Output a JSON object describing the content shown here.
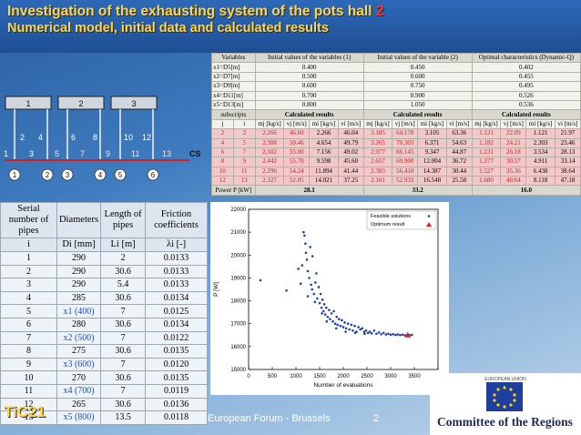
{
  "slide": {
    "title_text": "Investigation of the exhausting system of the pots hall ",
    "title_num": "2",
    "subtitle": "Numerical model, initial data and calculated results",
    "footer_center": "European Forum - Brussels",
    "footer_page": "2",
    "logo_left": "TiC21",
    "logo_right_top": "EUROPEAN UNION",
    "logo_right": "Committee of the Regions"
  },
  "schematic": {
    "sections": [
      "1",
      "2",
      "3"
    ],
    "branch_top": [
      "2",
      "4",
      "6",
      "8",
      "10",
      "12"
    ],
    "pipes_main": [
      "1",
      "3",
      "5",
      "7",
      "9",
      "11",
      "13"
    ],
    "nodes": [
      "1",
      "2",
      "3",
      "4",
      "5",
      "6"
    ],
    "end_label": "CS"
  },
  "pipes_table": {
    "headers": [
      "Serial number of pipes",
      "Diameters",
      "Length of pipes",
      "Friction coefficients"
    ],
    "subheaders": [
      "i",
      "Di [mm]",
      "Li [m]",
      "λi [-]"
    ],
    "rows": [
      [
        "1",
        "290",
        "2",
        "0.0133"
      ],
      [
        "2",
        "290",
        "30.6",
        "0.0133"
      ],
      [
        "3",
        "290",
        "5.4",
        "0.0133"
      ],
      [
        "4",
        "285",
        "30.6",
        "0.0134"
      ],
      [
        "5",
        "x1 (400)",
        "7",
        "0.0125"
      ],
      [
        "6",
        "280",
        "30.6",
        "0.0134"
      ],
      [
        "7",
        "x2 (500)",
        "7",
        "0.0122"
      ],
      [
        "8",
        "275",
        "30.6",
        "0.0135"
      ],
      [
        "9",
        "x3 (600)",
        "7",
        "0.0120"
      ],
      [
        "10",
        "270",
        "30.6",
        "0.0135"
      ],
      [
        "11",
        "x4 (700)",
        "7",
        "0.0119"
      ],
      [
        "12",
        "265",
        "30.6",
        "0.0136"
      ],
      [
        "13",
        "x5 (800)",
        "13.5",
        "0.0118"
      ]
    ]
  },
  "results_table": {
    "head": [
      "Variables",
      "Initial values of the variables (1)",
      "Initial values of the variable (2)",
      "Optimal characteristics (Dynamic-Q)"
    ],
    "vars": [
      [
        "x1=D5[m]",
        "0.400",
        "0.450",
        "0.402"
      ],
      [
        "x2=D7[m]",
        "0.500",
        "0.600",
        "0.455"
      ],
      [
        "x3=D9[m]",
        "0.600",
        "0.750",
        "0.495"
      ],
      [
        "x4=D11[m]",
        "0.700",
        "0.900",
        "0.526"
      ],
      [
        "x5=D13[m]",
        "0.800",
        "1.050",
        "0.536"
      ]
    ],
    "subscripts_label": "subscripts",
    "calc_label": "Calculated results",
    "units": [
      "j",
      "i",
      "mj [kg/s]",
      "vj [m/s]",
      "mi [kg/s]",
      "vi [m/s]",
      "mj [kg/s]",
      "vj [m/s]",
      "mi [kg/s]",
      "vi [m/s]",
      "mj [kg/s]",
      "vj [m/s]",
      "mi [kg/s]",
      "vi [m/s]"
    ],
    "rows": [
      [
        "2",
        "3",
        "2.266",
        "46.60",
        "2.266",
        "46.04",
        "3.105",
        "64.178",
        "3.105",
        "63.36",
        "1.121",
        "22.09",
        "1.121",
        "21.97"
      ],
      [
        "4",
        "5",
        "2.388",
        "50.46",
        "4.654",
        "49.79",
        "3.265",
        "70.303",
        "6.371",
        "54.63",
        "1.182",
        "24.21",
        "2.303",
        "23.46"
      ],
      [
        "6",
        "7",
        "2.502",
        "55.00",
        "7.156",
        "49.02",
        "2.977",
        "66.145",
        "9.347",
        "44.87",
        "1.231",
        "26.18",
        "3.534",
        "28.13"
      ],
      [
        "8",
        "9",
        "2.442",
        "55.70",
        "9.598",
        "45.60",
        "2.657",
        "60.900",
        "12.004",
        "36.72",
        "1.377",
        "30.57",
        "4.911",
        "33.14"
      ],
      [
        "10",
        "11",
        "2.296",
        "54.24",
        "11.894",
        "41.44",
        "2.383",
        "56.410",
        "14.387",
        "30.44",
        "1.527",
        "35.36",
        "6.438",
        "38.64"
      ],
      [
        "12",
        "13",
        "2.127",
        "52.05",
        "14.021",
        "37.25",
        "2.161",
        "52.933",
        "16.548",
        "25.58",
        "1.680",
        "40.64",
        "8.118",
        "47.18"
      ]
    ],
    "power_label": "Power P [kW]",
    "power": [
      "28.1",
      "33.2",
      "16.0"
    ]
  },
  "chart_data": {
    "type": "scatter",
    "xlabel": "Number of evaluations",
    "ylabel": "P [W]",
    "xlim": [
      0,
      4000
    ],
    "ylim": [
      15000,
      22000
    ],
    "xticks": [
      0,
      500,
      1000,
      1500,
      2000,
      2500,
      3000,
      3500,
      4000
    ],
    "yticks": [
      15000,
      16000,
      17000,
      18000,
      19000,
      20000,
      21000,
      22000
    ],
    "legend": [
      "Feasible solutions",
      "Optimum result"
    ],
    "legend_position": "top-right",
    "colors": {
      "feasible": "#1f3fbf",
      "optimum": "#e02020"
    },
    "optimum": {
      "x": 3360,
      "y": 16500
    },
    "feasible": [
      [
        250,
        18900
      ],
      [
        800,
        18450
      ],
      [
        1130,
        19550
      ],
      [
        1160,
        21000
      ],
      [
        1180,
        20850
      ],
      [
        1200,
        20500
      ],
      [
        1210,
        20100
      ],
      [
        1230,
        19800
      ],
      [
        1250,
        19300
      ],
      [
        1280,
        19000
      ],
      [
        1300,
        20350
      ],
      [
        1320,
        18700
      ],
      [
        1340,
        18500
      ],
      [
        1350,
        19950
      ],
      [
        1380,
        18300
      ],
      [
        1410,
        18800
      ],
      [
        1430,
        19200
      ],
      [
        1450,
        18100
      ],
      [
        1480,
        18600
      ],
      [
        1500,
        17900
      ],
      [
        1520,
        18300
      ],
      [
        1540,
        17700
      ],
      [
        1560,
        18050
      ],
      [
        1580,
        17550
      ],
      [
        1600,
        17850
      ],
      [
        1620,
        17400
      ],
      [
        1640,
        17700
      ],
      [
        1670,
        17300
      ],
      [
        1700,
        17600
      ],
      [
        1720,
        17200
      ],
      [
        1750,
        17450
      ],
      [
        1780,
        17100
      ],
      [
        1800,
        17550
      ],
      [
        1830,
        17000
      ],
      [
        1860,
        17300
      ],
      [
        1880,
        16950
      ],
      [
        1910,
        17200
      ],
      [
        1940,
        16900
      ],
      [
        1970,
        17150
      ],
      [
        2000,
        16850
      ],
      [
        2030,
        17050
      ],
      [
        2060,
        16800
      ],
      [
        2100,
        17000
      ],
      [
        2130,
        16750
      ],
      [
        2170,
        16950
      ],
      [
        2200,
        16700
      ],
      [
        2240,
        16900
      ],
      [
        2280,
        16650
      ],
      [
        2320,
        16850
      ],
      [
        2360,
        16750
      ],
      [
        2400,
        16800
      ],
      [
        2440,
        16650
      ],
      [
        2480,
        16700
      ],
      [
        2520,
        16600
      ],
      [
        2560,
        16650
      ],
      [
        2600,
        16580
      ],
      [
        2650,
        16700
      ],
      [
        2700,
        16560
      ],
      [
        2750,
        16620
      ],
      [
        2800,
        16540
      ],
      [
        2850,
        16600
      ],
      [
        2900,
        16530
      ],
      [
        2950,
        16560
      ],
      [
        3000,
        16520
      ],
      [
        3050,
        16540
      ],
      [
        3100,
        16510
      ],
      [
        3150,
        16530
      ],
      [
        3200,
        16505
      ],
      [
        3250,
        16520
      ],
      [
        3300,
        16500
      ],
      [
        3400,
        16500
      ],
      [
        3450,
        16510
      ],
      [
        1050,
        19400
      ],
      [
        1100,
        18750
      ],
      [
        1250,
        18200
      ],
      [
        1400,
        17950
      ],
      [
        1550,
        17450
      ],
      [
        1650,
        17100
      ],
      [
        1850,
        16800
      ],
      [
        2050,
        16650
      ],
      [
        2250,
        16600
      ],
      [
        2450,
        16560
      ]
    ]
  }
}
